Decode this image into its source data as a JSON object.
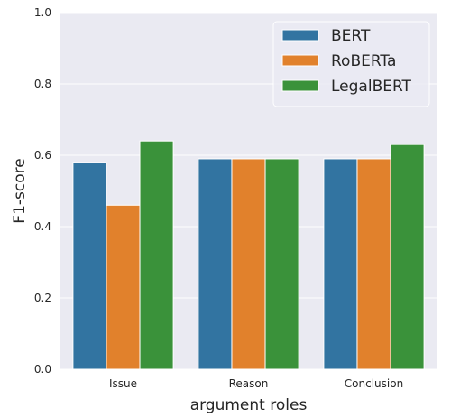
{
  "chart_data": {
    "type": "bar",
    "categories": [
      "Issue",
      "Reason",
      "Conclusion"
    ],
    "series": [
      {
        "name": "BERT",
        "values": [
          0.58,
          0.59,
          0.59
        ],
        "color": "#3274a1"
      },
      {
        "name": "RoBERTa",
        "values": [
          0.46,
          0.59,
          0.59
        ],
        "color": "#e1812c"
      },
      {
        "name": "LegalBERT",
        "values": [
          0.64,
          0.59,
          0.63
        ],
        "color": "#3a923a"
      }
    ],
    "xlabel": "argument roles",
    "ylabel": "F1-score",
    "ylim": [
      0,
      1.0
    ],
    "yticks": [
      "0.0",
      "0.2",
      "0.4",
      "0.6",
      "0.8",
      "1.0"
    ],
    "grid": true,
    "legend_position": "top-right",
    "background": "#eaeaf2"
  }
}
